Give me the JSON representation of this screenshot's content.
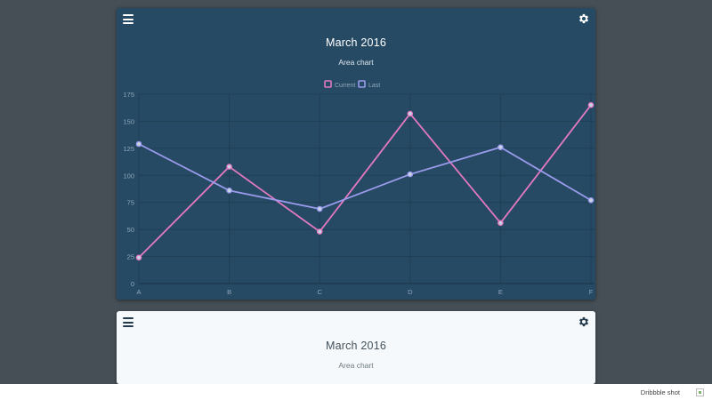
{
  "cards": [
    {
      "title": "March 2016",
      "subtitle": "Area chart",
      "menu_icon": "menu-icon",
      "settings_icon": "gear-icon",
      "theme": "dark"
    },
    {
      "title": "March 2016",
      "subtitle": "Area chart",
      "menu_icon": "menu-icon",
      "settings_icon": "gear-icon",
      "theme": "light"
    }
  ],
  "footer": {
    "label": "Dribbble shot",
    "image_icon": "broken-image-icon"
  },
  "colors": {
    "page_bg": "#454f55",
    "card_dark_bg": "#274a64",
    "card_light_bg": "#f6f9fb",
    "current": "#e379c0",
    "last": "#9b9bed",
    "grid": "#1f3f55",
    "tick": "#8fa7ba"
  },
  "chart_data": {
    "type": "line",
    "categories": [
      "A",
      "B",
      "C",
      "D",
      "E",
      "F"
    ],
    "series": [
      {
        "name": "Current",
        "values": [
          24,
          108,
          48,
          157,
          56,
          165
        ],
        "color": "#e379c0"
      },
      {
        "name": "Last",
        "values": [
          129,
          86,
          69,
          101,
          126,
          77
        ],
        "color": "#9b9bed"
      }
    ],
    "y_ticks": [
      0,
      25,
      50,
      75,
      100,
      125,
      150,
      175
    ],
    "ylim": [
      0,
      175
    ],
    "grid": true,
    "legend_position": "top-center"
  }
}
